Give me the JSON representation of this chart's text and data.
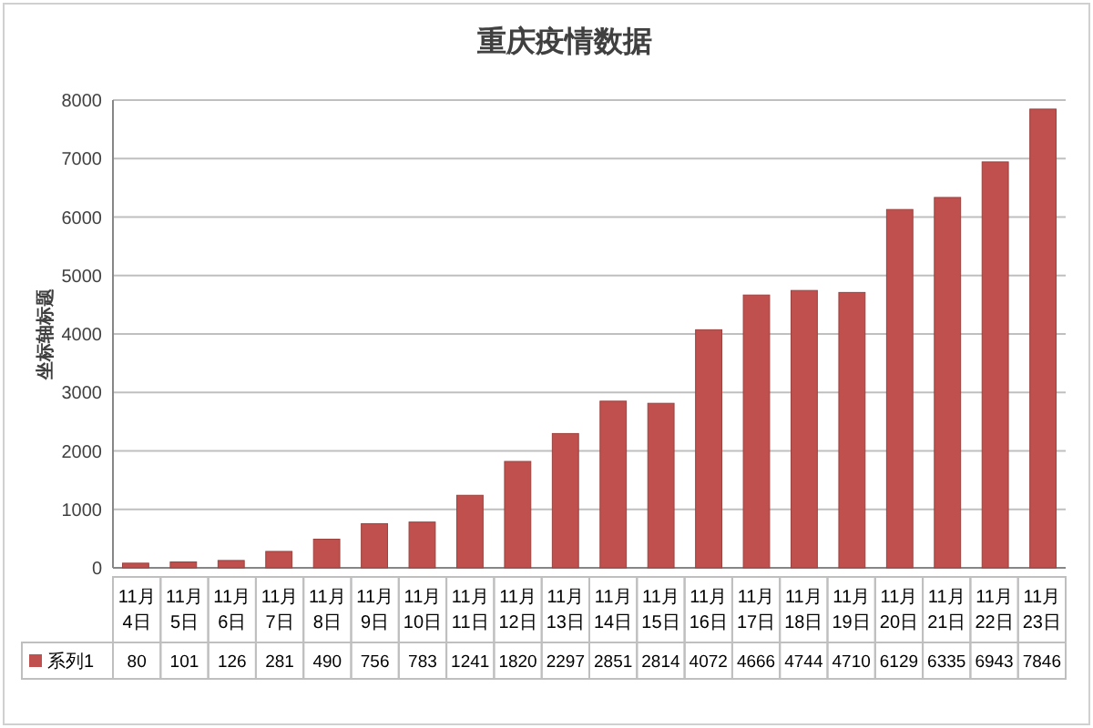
{
  "chart_data": {
    "type": "bar",
    "title": "重庆疫情数据",
    "ylabel": "坐标轴标题",
    "categories": [
      "11月4日",
      "11月5日",
      "11月6日",
      "11月7日",
      "11月8日",
      "11月9日",
      "11月10日",
      "11月11日",
      "11月12日",
      "11月13日",
      "11月14日",
      "11月15日",
      "11月16日",
      "11月17日",
      "11月18日",
      "11月19日",
      "11月20日",
      "11月21日",
      "11月22日",
      "11月23日"
    ],
    "series": [
      {
        "name": "系列1",
        "color": "#c0504d",
        "values": [
          80,
          101,
          126,
          281,
          490,
          756,
          783,
          1241,
          1820,
          2297,
          2851,
          2814,
          4072,
          4666,
          4744,
          4710,
          6129,
          6335,
          6943,
          7846
        ]
      }
    ],
    "ylim": [
      0,
      8000
    ],
    "yticks": [
      0,
      1000,
      2000,
      3000,
      4000,
      5000,
      6000,
      7000,
      8000
    ],
    "grid": "y",
    "data_labels": true,
    "legend": "bottom"
  }
}
